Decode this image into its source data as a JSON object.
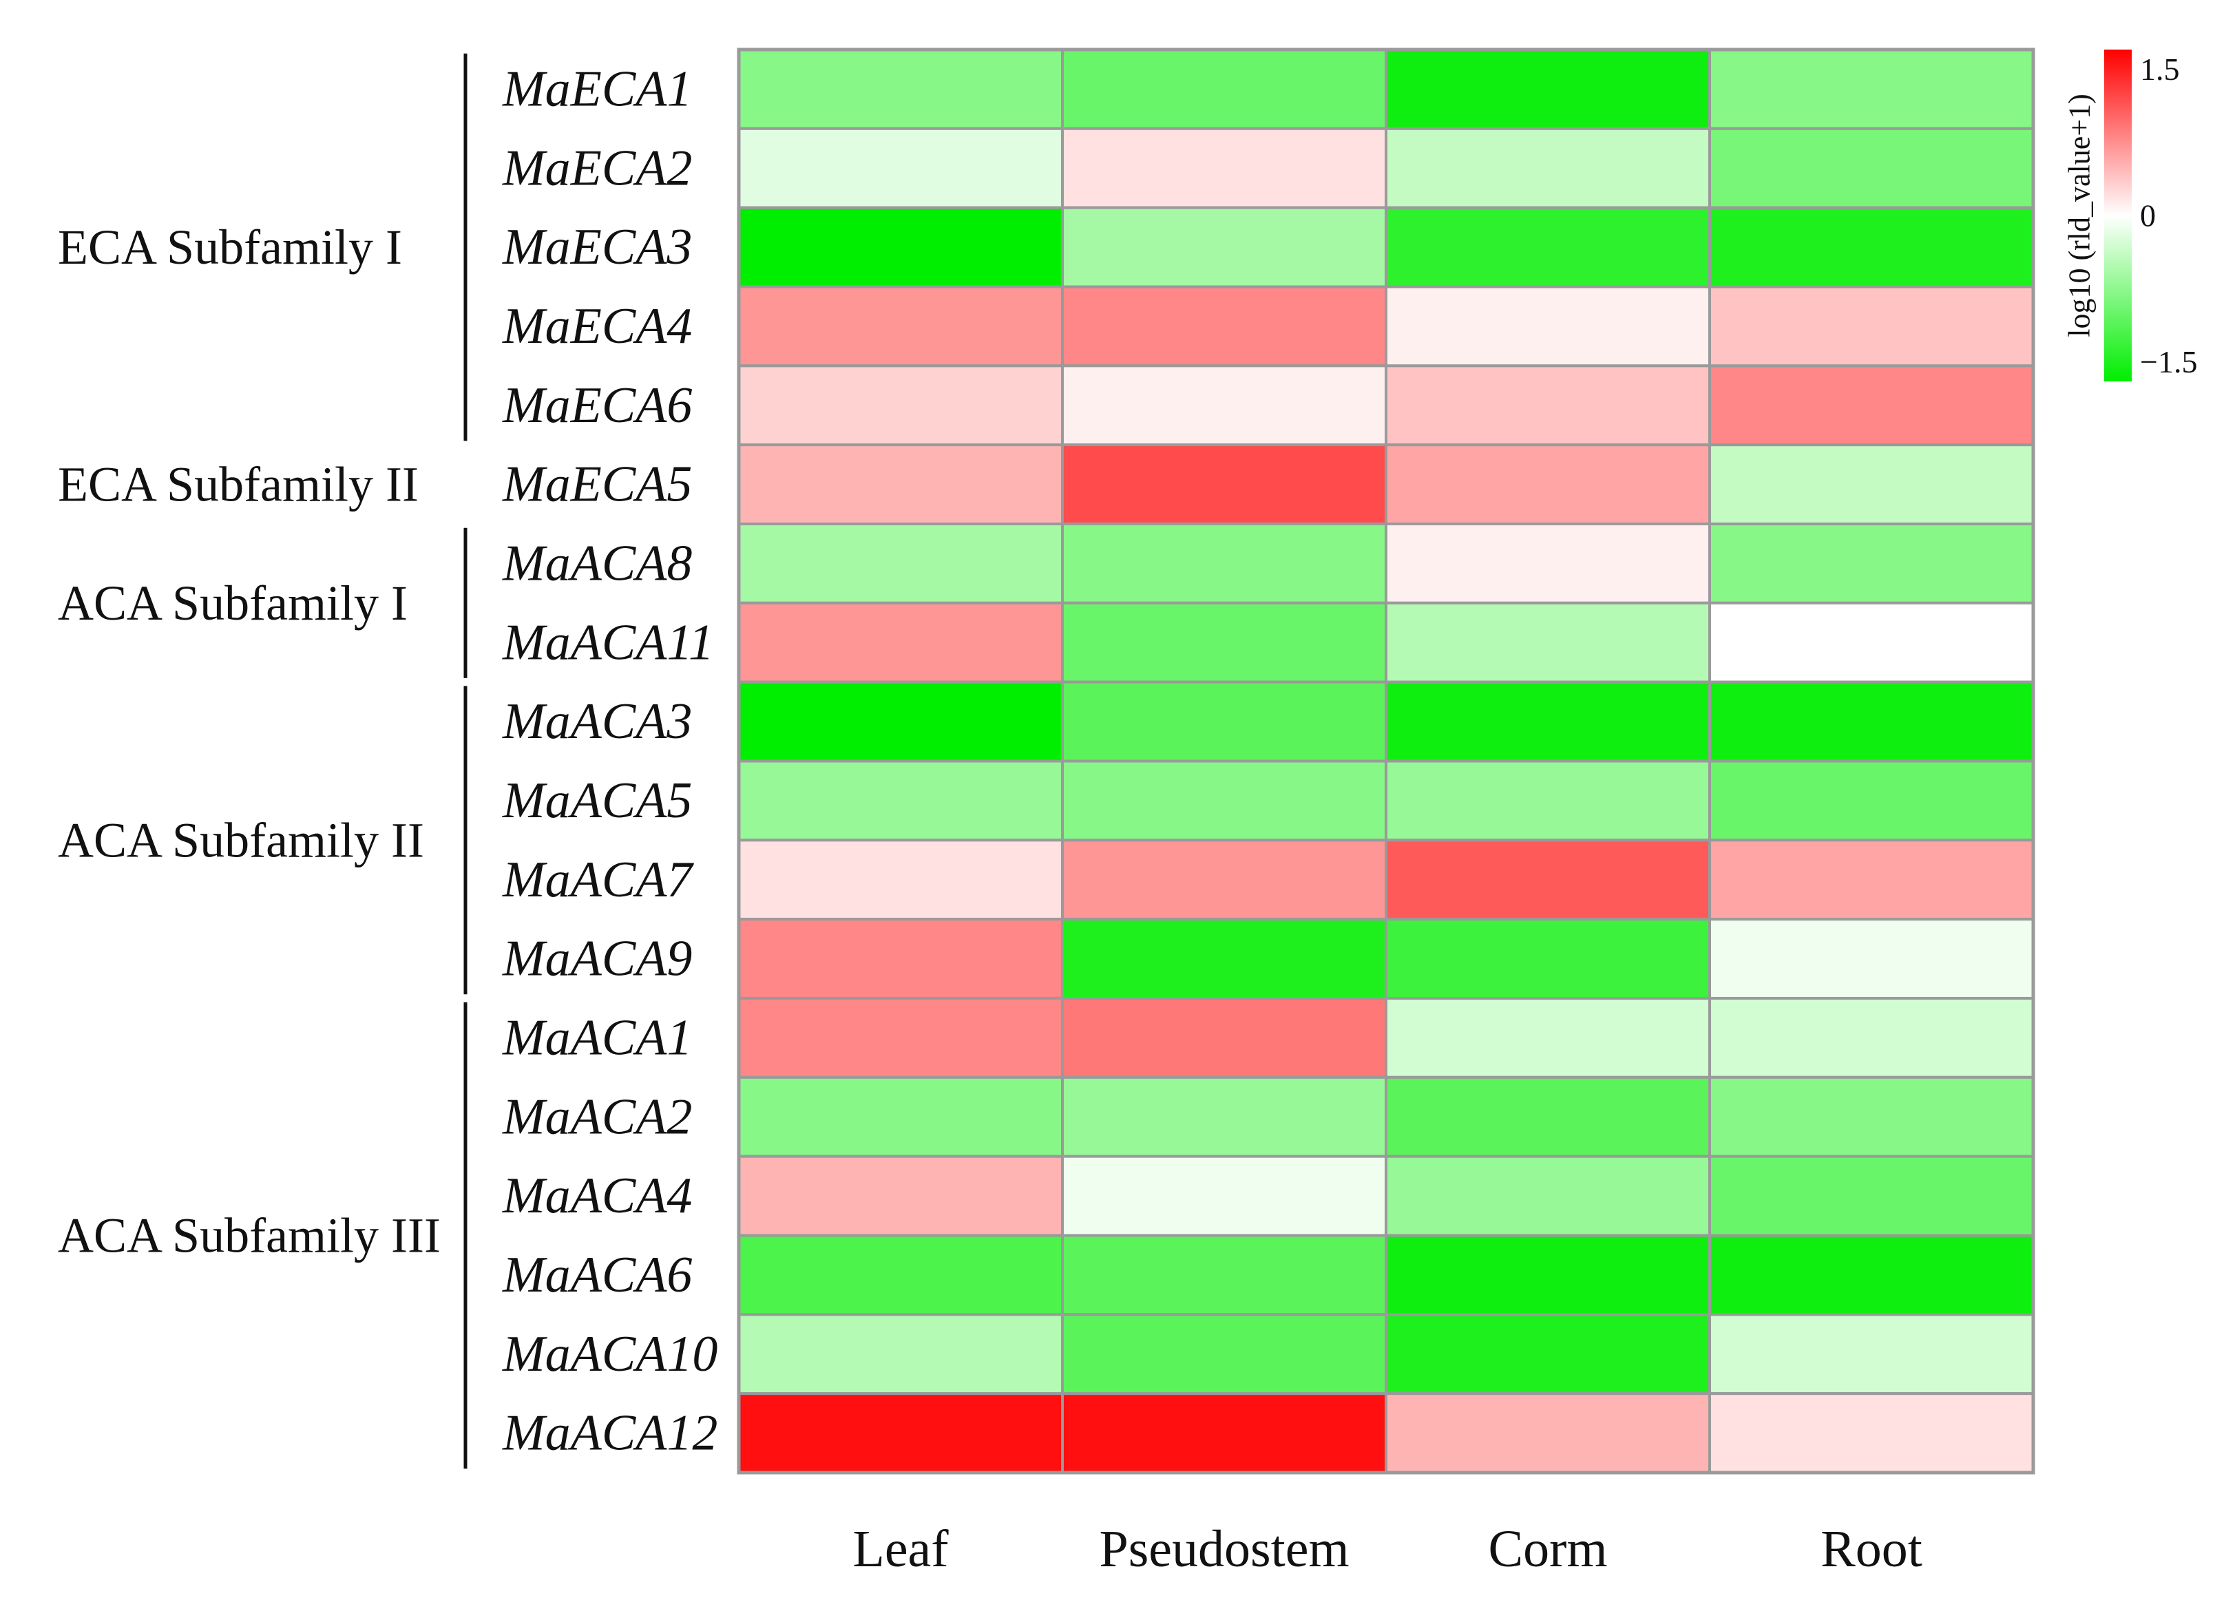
{
  "chart_data": {
    "type": "heatmap",
    "title": "",
    "columns": [
      "Leaf",
      "Pseudostem",
      "Corm",
      "Root"
    ],
    "rows": [
      "MaECA1",
      "MaECA2",
      "MaECA3",
      "MaECA4",
      "MaECA6",
      "MaECA5",
      "MaACA8",
      "MaACA11",
      "MaACA3",
      "MaACA5",
      "MaACA7",
      "MaACA9",
      "MaACA1",
      "MaACA2",
      "MaACA4",
      "MaACA6",
      "MaACA10",
      "MaACA12"
    ],
    "values": [
      [
        -0.8,
        -1.0,
        -1.6,
        -0.8
      ],
      [
        -0.2,
        0.2,
        -0.4,
        -0.9
      ],
      [
        -1.7,
        -0.6,
        -1.4,
        -1.5
      ],
      [
        0.7,
        0.8,
        0.1,
        0.4
      ],
      [
        0.3,
        0.1,
        0.4,
        0.8
      ],
      [
        0.5,
        1.2,
        0.6,
        -0.4
      ],
      [
        -0.6,
        -0.8,
        0.1,
        -0.8
      ],
      [
        0.7,
        -1.0,
        -0.5,
        0.0
      ],
      [
        -1.7,
        -1.1,
        -1.6,
        -1.6
      ],
      [
        -0.7,
        -0.8,
        -0.7,
        -1.0
      ],
      [
        0.2,
        0.7,
        1.1,
        0.6
      ],
      [
        0.8,
        -1.5,
        -1.3,
        -0.1
      ],
      [
        0.8,
        0.9,
        -0.3,
        -0.3
      ],
      [
        -0.8,
        -0.7,
        -1.1,
        -0.8
      ],
      [
        0.5,
        -0.1,
        -0.7,
        -1.0
      ],
      [
        -1.2,
        -1.1,
        -1.6,
        -1.6
      ],
      [
        -0.5,
        -1.1,
        -1.5,
        -0.3
      ],
      [
        1.6,
        1.6,
        0.5,
        0.2
      ]
    ],
    "row_groups": [
      {
        "label": "ECA Subfamily I",
        "rows": [
          "MaECA1",
          "MaECA2",
          "MaECA3",
          "MaECA4",
          "MaECA6"
        ]
      },
      {
        "label": "ECA Subfamily II",
        "rows": [
          "MaECA5"
        ]
      },
      {
        "label": "ACA Subfamily I",
        "rows": [
          "MaACA8",
          "MaACA11"
        ]
      },
      {
        "label": "ACA Subfamily II",
        "rows": [
          "MaACA3",
          "MaACA5",
          "MaACA7",
          "MaACA9"
        ]
      },
      {
        "label": "ACA Subfamily III",
        "rows": [
          "MaACA1",
          "MaACA2",
          "MaACA4",
          "MaACA6",
          "MaACA10",
          "MaACA12"
        ]
      }
    ],
    "colorbar": {
      "label": "log10 (rld_value+1)",
      "range": [
        -1.7,
        1.7
      ],
      "ticks": [
        1.5,
        0,
        -1.5
      ],
      "tick_labels": [
        "1.5",
        "0",
        "−1.5"
      ],
      "low_color": "#00ee00",
      "mid_color": "#ffffff",
      "high_color": "#ff0000"
    }
  }
}
